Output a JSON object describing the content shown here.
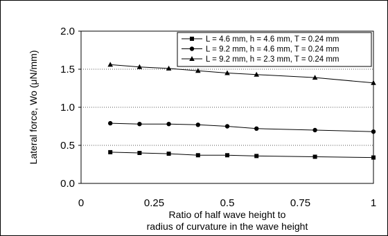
{
  "chart_data": {
    "type": "line",
    "xlabel_line1": "Ratio of half wave height to",
    "xlabel_line2": "radius of curvature in the wave height",
    "ylabel": "Lateral force, Wo (μN/mm)",
    "xlim": [
      0,
      1
    ],
    "ylim": [
      0,
      2
    ],
    "x_ticks": [
      "0",
      "0.25",
      "0.5",
      "0.75",
      "1"
    ],
    "y_ticks": [
      "0.0",
      "0.5",
      "1.0",
      "1.5",
      "2.0"
    ],
    "grid": "horizontal dotted",
    "legend_position": "top-right",
    "line_color": "#000000",
    "series": [
      {
        "name": "L = 4.6 mm, h = 4.6 mm, T = 0.24 mm",
        "marker": "square",
        "x": [
          0.1,
          0.2,
          0.3,
          0.4,
          0.5,
          0.6,
          0.8,
          1.0
        ],
        "y": [
          0.41,
          0.4,
          0.39,
          0.37,
          0.37,
          0.36,
          0.35,
          0.34
        ]
      },
      {
        "name": "L = 9.2 mm, h = 4.6 mm, T = 0.24 mm",
        "marker": "circle",
        "x": [
          0.1,
          0.2,
          0.3,
          0.4,
          0.5,
          0.6,
          0.8,
          1.0
        ],
        "y": [
          0.79,
          0.78,
          0.78,
          0.77,
          0.75,
          0.72,
          0.7,
          0.68
        ]
      },
      {
        "name": "L = 9.2 mm, h = 2.3 mm, T = 0.24 mm",
        "marker": "triangle",
        "x": [
          0.1,
          0.2,
          0.3,
          0.4,
          0.5,
          0.6,
          0.8,
          1.0
        ],
        "y": [
          1.56,
          1.53,
          1.51,
          1.48,
          1.45,
          1.43,
          1.39,
          1.32
        ]
      }
    ]
  }
}
